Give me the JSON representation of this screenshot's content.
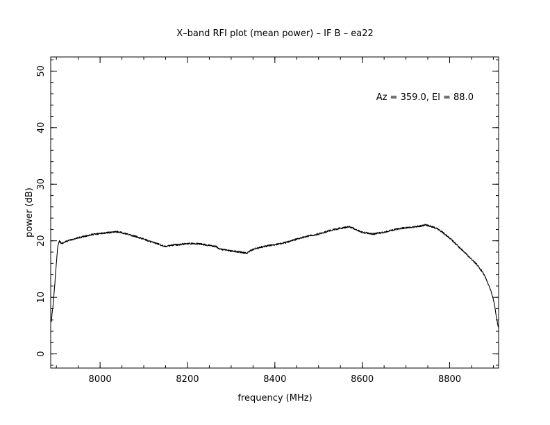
{
  "chart_data": {
    "type": "line",
    "title": "X–band RFI plot (mean power) – IF B – ea22",
    "xlabel": "frequency (MHz)",
    "ylabel": "power (dB)",
    "annotation": "Az = 359.0, El = 88.0",
    "xlim": [
      7887,
      8912
    ],
    "ylim": [
      -2.5,
      52.5
    ],
    "x_major_ticks": [
      8000,
      8200,
      8400,
      8600,
      8800
    ],
    "x_minor_step": 50,
    "y_major_ticks": [
      0,
      10,
      20,
      30,
      40,
      50
    ],
    "y_minor_step": 2,
    "grid": false,
    "line_color": "#000000",
    "series": [
      {
        "x": [
          7888,
          7893,
          7898,
          7903,
          7907,
          7912,
          7920,
          7935,
          7950,
          7975,
          8000,
          8025,
          8040,
          8060,
          8080,
          8100,
          8110,
          8130,
          8150,
          8175,
          8200,
          8225,
          8250,
          8265,
          8275,
          8300,
          8320,
          8335,
          8350,
          8375,
          8400,
          8425,
          8450,
          8475,
          8500,
          8525,
          8550,
          8570,
          8580,
          8600,
          8625,
          8650,
          8675,
          8700,
          8725,
          8745,
          8760,
          8775,
          8800,
          8820,
          8840,
          8860,
          8875,
          8885,
          8895,
          8902,
          8908,
          8912
        ],
        "y": [
          5.5,
          9.0,
          14.0,
          19.0,
          20.0,
          19.5,
          19.8,
          20.2,
          20.5,
          21.0,
          21.3,
          21.5,
          21.6,
          21.2,
          20.8,
          20.3,
          20.0,
          19.5,
          19.0,
          19.3,
          19.5,
          19.5,
          19.2,
          19.0,
          18.5,
          18.2,
          18.0,
          17.8,
          18.5,
          19.0,
          19.3,
          19.7,
          20.3,
          20.8,
          21.2,
          21.8,
          22.2,
          22.5,
          22.2,
          21.5,
          21.2,
          21.5,
          22.0,
          22.3,
          22.5,
          22.8,
          22.5,
          22.0,
          20.5,
          19.0,
          17.5,
          16.0,
          14.5,
          13.0,
          11.0,
          9.0,
          6.0,
          4.5
        ]
      }
    ]
  }
}
